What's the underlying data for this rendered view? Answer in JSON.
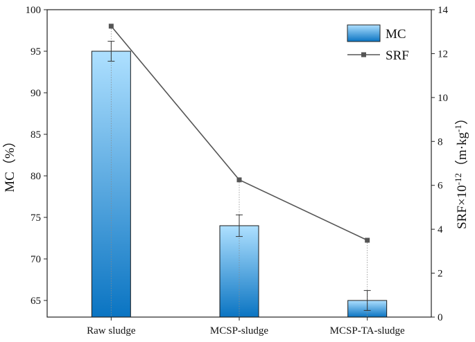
{
  "chart_data": {
    "type": "bar+line",
    "categories": [
      "Raw sludge",
      "MCSP-sludge",
      "MCSP-TA-sludge"
    ],
    "series": [
      {
        "name": "MC",
        "kind": "bar",
        "axis": "left",
        "values": [
          95.0,
          74.0,
          65.0
        ],
        "errors": [
          1.2,
          1.3,
          1.2
        ],
        "color_top": "#aee0ff",
        "color_bottom": "#0a74c2"
      },
      {
        "name": "SRF",
        "kind": "line",
        "axis": "right",
        "values": [
          13.25,
          6.25,
          3.5
        ],
        "color": "#555555"
      }
    ],
    "ylabel_left": "MC（%）",
    "ylabel_right_parts": {
      "base": "SRF×10",
      "exp1": "-12",
      "mid": "（m·kg",
      "exp2": "-1",
      "end": "）"
    },
    "ylim_left": [
      63,
      100
    ],
    "ylim_right": [
      0,
      14
    ],
    "yticks_left": [
      "65",
      "70",
      "75",
      "80",
      "85",
      "90",
      "95",
      "100"
    ],
    "yticks_right": [
      "0",
      "2",
      "4",
      "6",
      "8",
      "10",
      "12",
      "14"
    ],
    "legend": [
      "MC",
      "SRF"
    ],
    "legend_position": "top-right"
  }
}
